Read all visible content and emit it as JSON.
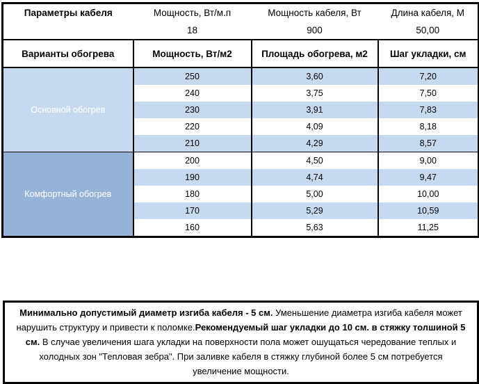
{
  "colors": {
    "dark_blue": "#4F81BD",
    "medium_blue": "#95B3D7",
    "row_stripe": "#C6D9F1",
    "border": "#000000"
  },
  "cable_params": {
    "title": "Параметры кабеля",
    "items": [
      {
        "label": "Мощность, Вт/м.п",
        "value": "18"
      },
      {
        "label": "Мощность кабеля, Вт",
        "value": "900"
      },
      {
        "label": "Длина кабеля, М",
        "value": "50,00"
      }
    ]
  },
  "heating_table": {
    "columns": [
      "Варианты обогрева",
      "Мощность, Вт/м2",
      "Площадь обогрева, м2",
      "Шаг укладки, см"
    ],
    "sections": [
      {
        "name": "Основной обогрев",
        "rows": [
          [
            "250",
            "3,60",
            "7,20"
          ],
          [
            "240",
            "3,75",
            "7,50"
          ],
          [
            "230",
            "3,91",
            "7,83"
          ],
          [
            "220",
            "4,09",
            "8,18"
          ],
          [
            "210",
            "4,29",
            "8,57"
          ]
        ]
      },
      {
        "name": "Комфортный обогрев",
        "rows": [
          [
            "200",
            "4,50",
            "9,00"
          ],
          [
            "190",
            "4,74",
            "9,47"
          ],
          [
            "180",
            "5,00",
            "10,00"
          ],
          [
            "170",
            "5,29",
            "10,59"
          ],
          [
            "160",
            "5,63",
            "11,25"
          ]
        ]
      }
    ]
  },
  "note": {
    "segments": [
      {
        "text": "Минимально допустимый диаметр изгиба кабеля - 5 см.",
        "bold": true
      },
      {
        "text": "  Уменьшение диаметра изгиба кабеля может нарушить структуру и привести к поломке.",
        "bold": false
      },
      {
        "text": "Рекомендуемый шаг укладки до 10 см. в стяжку толшиной 5 см.",
        "bold": true
      },
      {
        "text": " В  случае увеличения шага укладки на поверхности пола может ошущаться чередование теплых и холодных зон \"Тепловая зебра\". При заливке кабеля в стяжку глубиной более 5 см потребуется увеличение мощности.",
        "bold": false
      }
    ]
  }
}
